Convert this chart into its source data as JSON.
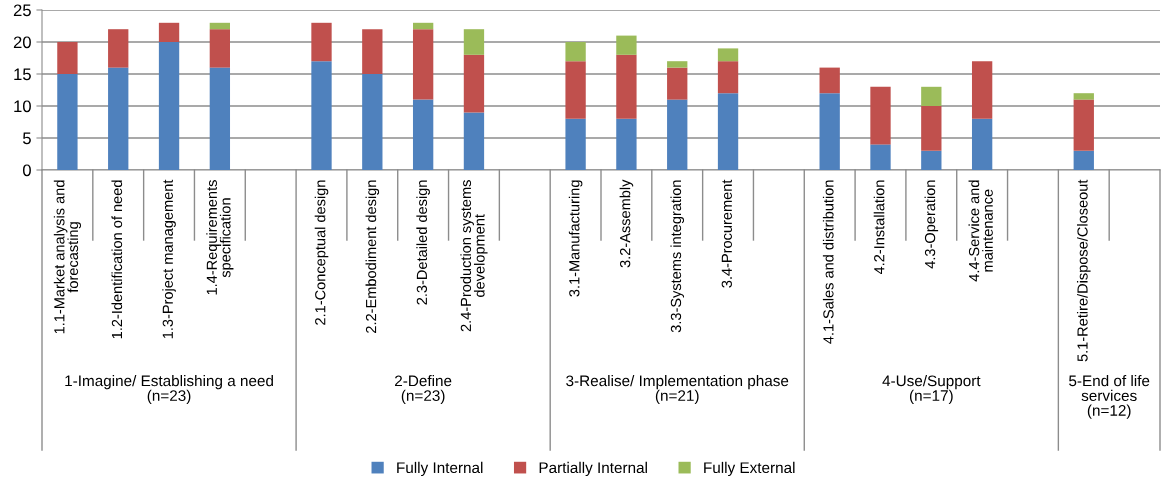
{
  "chart_data": {
    "type": "bar",
    "stacked": true,
    "categories": [
      "1.1-Market analysis and\nforecasting",
      "1.2-Identification of need",
      "1.3-Project management",
      "1.4-Requirements\nspecification",
      null,
      "2.1-Conceptual design",
      "2.2-Embodiment design",
      "2.3-Detailed design",
      "2.4-Production systems\ndevelopment",
      null,
      "3.1-Manufacturing",
      "3.2-Assembly",
      "3.3-Systems integration",
      "3.4-Procurement",
      null,
      "4.1-Sales and distribution",
      "4.2-Installation",
      "4.3-Operation",
      "4.4-Service and\nmaintenance",
      null,
      "5.1-Retire/Dispose/Closeout",
      null
    ],
    "series": [
      {
        "name": "Fully Internal",
        "color": "#4f81bd",
        "values": [
          15,
          16,
          20,
          16,
          null,
          17,
          15,
          11,
          9,
          null,
          8,
          8,
          11,
          12,
          null,
          12,
          4,
          3,
          8,
          null,
          3,
          null
        ]
      },
      {
        "name": "Partially Internal",
        "color": "#c0504d",
        "values": [
          5,
          6,
          3,
          6,
          null,
          6,
          7,
          11,
          9,
          null,
          9,
          10,
          5,
          5,
          null,
          4,
          9,
          7,
          9,
          null,
          8,
          null
        ]
      },
      {
        "name": "Fully External",
        "color": "#9bbb59",
        "values": [
          0,
          0,
          0,
          1,
          null,
          0,
          0,
          1,
          4,
          null,
          3,
          3,
          1,
          2,
          null,
          0,
          0,
          3,
          0,
          null,
          1,
          null
        ]
      }
    ],
    "ylim": [
      0,
      25
    ],
    "yticks": [
      0,
      5,
      10,
      15,
      20,
      25
    ],
    "grid": "y",
    "legend": "bottom",
    "annotations": [
      "1-Imagine/ Establishing a need\n(n=23)",
      "2-Define\n(n=23)",
      "3-Realise/ Implementation phase\n(n=21)",
      "4-Use/Support\n(n=17)",
      "5-End of life\nservices\n(n=12)"
    ]
  }
}
